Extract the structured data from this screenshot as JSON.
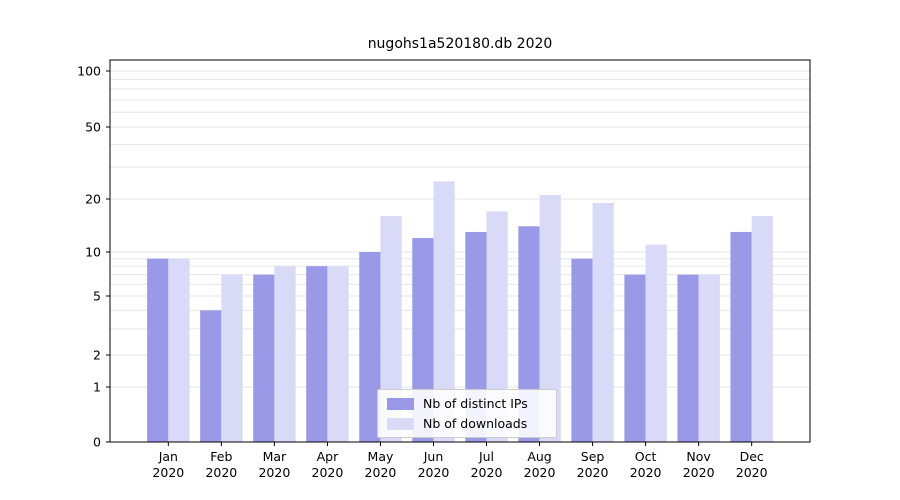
{
  "chart_data": {
    "type": "bar",
    "title": "nugohs1a520180.db 2020",
    "categories": [
      "Jan 2020",
      "Feb 2020",
      "Mar 2020",
      "Apr 2020",
      "May 2020",
      "Jun 2020",
      "Jul 2020",
      "Aug 2020",
      "Sep 2020",
      "Oct 2020",
      "Nov 2020",
      "Dec 2020"
    ],
    "series": [
      {
        "id": "distinct-ips",
        "name": "Nb of distinct IPs",
        "color": "#9999e8",
        "values": [
          9,
          4,
          7,
          8,
          10,
          12,
          13,
          14,
          9,
          7,
          7,
          13
        ]
      },
      {
        "id": "downloads",
        "name": "Nb of downloads",
        "color": "#d9d9f8",
        "values": [
          9,
          7,
          8,
          8,
          16,
          25,
          17,
          21,
          19,
          11,
          7,
          16
        ]
      }
    ],
    "y_ticks": [
      0,
      1,
      2,
      5,
      10,
      20,
      50,
      100
    ],
    "gridline_values": [
      1,
      2,
      3,
      4,
      5,
      6,
      7,
      8,
      9,
      10,
      20,
      30,
      40,
      50,
      60,
      70,
      80,
      90,
      100
    ],
    "y_scale": "symlog",
    "ylim": [
      0,
      115
    ],
    "xlabel": "",
    "ylabel": "",
    "grid": true,
    "legend_position": "lower center",
    "colors": {
      "axis": "#000000",
      "grid": "#e6e6e6",
      "background": "#ffffff"
    }
  }
}
